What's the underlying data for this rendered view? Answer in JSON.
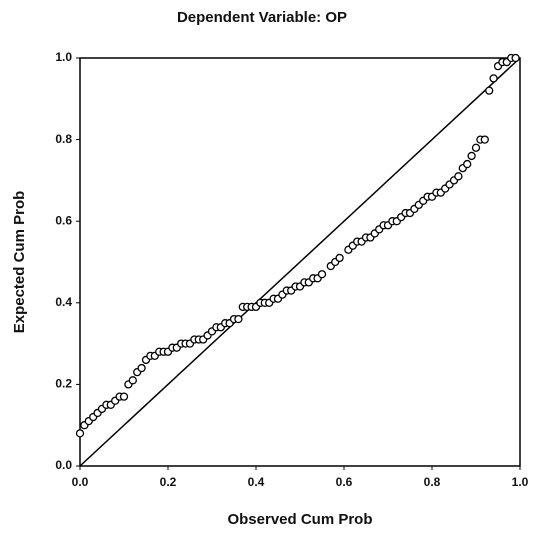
{
  "chart_data": {
    "type": "scatter",
    "title": "Dependent Variable: OP",
    "xlabel": "Observed Cum Prob",
    "ylabel": "Expected Cum Prob",
    "xlim": [
      0,
      1
    ],
    "ylim": [
      0,
      1
    ],
    "xticks": [
      {
        "value": 0,
        "label": "0.0"
      },
      0.2,
      0.4,
      0.6,
      0.8,
      {
        "value": 1,
        "label": "1.0"
      }
    ],
    "yticks": [
      {
        "value": 0,
        "label": "0.0"
      },
      0.2,
      0.4,
      0.6,
      0.8,
      {
        "value": 1,
        "label": "1.0"
      }
    ],
    "color": "#000000",
    "x": [
      0.0,
      0.01,
      0.02,
      0.03,
      0.04,
      0.05,
      0.06,
      0.07,
      0.08,
      0.09,
      0.1,
      0.11,
      0.12,
      0.13,
      0.14,
      0.15,
      0.16,
      0.17,
      0.18,
      0.19,
      0.2,
      0.21,
      0.22,
      0.23,
      0.24,
      0.25,
      0.26,
      0.27,
      0.28,
      0.29,
      0.3,
      0.31,
      0.32,
      0.33,
      0.34,
      0.35,
      0.36,
      0.37,
      0.38,
      0.39,
      0.4,
      0.41,
      0.42,
      0.43,
      0.44,
      0.45,
      0.46,
      0.47,
      0.48,
      0.49,
      0.5,
      0.51,
      0.52,
      0.53,
      0.54,
      0.55,
      0.57,
      0.58,
      0.59,
      0.61,
      0.62,
      0.63,
      0.64,
      0.65,
      0.66,
      0.67,
      0.68,
      0.69,
      0.7,
      0.71,
      0.72,
      0.73,
      0.74,
      0.75,
      0.76,
      0.77,
      0.78,
      0.79,
      0.8,
      0.81,
      0.82,
      0.83,
      0.84,
      0.85,
      0.86,
      0.87,
      0.88,
      0.89,
      0.9,
      0.91,
      0.92,
      0.93,
      0.94,
      0.95,
      0.96,
      0.97,
      0.98,
      0.99
    ],
    "values": [
      0.08,
      0.1,
      0.11,
      0.12,
      0.13,
      0.14,
      0.15,
      0.15,
      0.16,
      0.17,
      0.17,
      0.2,
      0.21,
      0.23,
      0.24,
      0.26,
      0.27,
      0.27,
      0.28,
      0.28,
      0.28,
      0.29,
      0.29,
      0.3,
      0.3,
      0.3,
      0.31,
      0.31,
      0.31,
      0.32,
      0.33,
      0.34,
      0.34,
      0.35,
      0.35,
      0.36,
      0.36,
      0.39,
      0.39,
      0.39,
      0.39,
      0.4,
      0.4,
      0.4,
      0.41,
      0.41,
      0.42,
      0.43,
      0.43,
      0.44,
      0.44,
      0.45,
      0.45,
      0.46,
      0.46,
      0.47,
      0.49,
      0.5,
      0.51,
      0.53,
      0.54,
      0.55,
      0.55,
      0.56,
      0.56,
      0.57,
      0.58,
      0.59,
      0.59,
      0.6,
      0.6,
      0.61,
      0.62,
      0.62,
      0.63,
      0.64,
      0.65,
      0.66,
      0.66,
      0.67,
      0.67,
      0.68,
      0.69,
      0.7,
      0.71,
      0.73,
      0.74,
      0.76,
      0.78,
      0.8,
      0.8,
      0.92,
      0.95,
      0.98,
      0.99,
      0.99,
      1.0,
      1.0
    ]
  }
}
